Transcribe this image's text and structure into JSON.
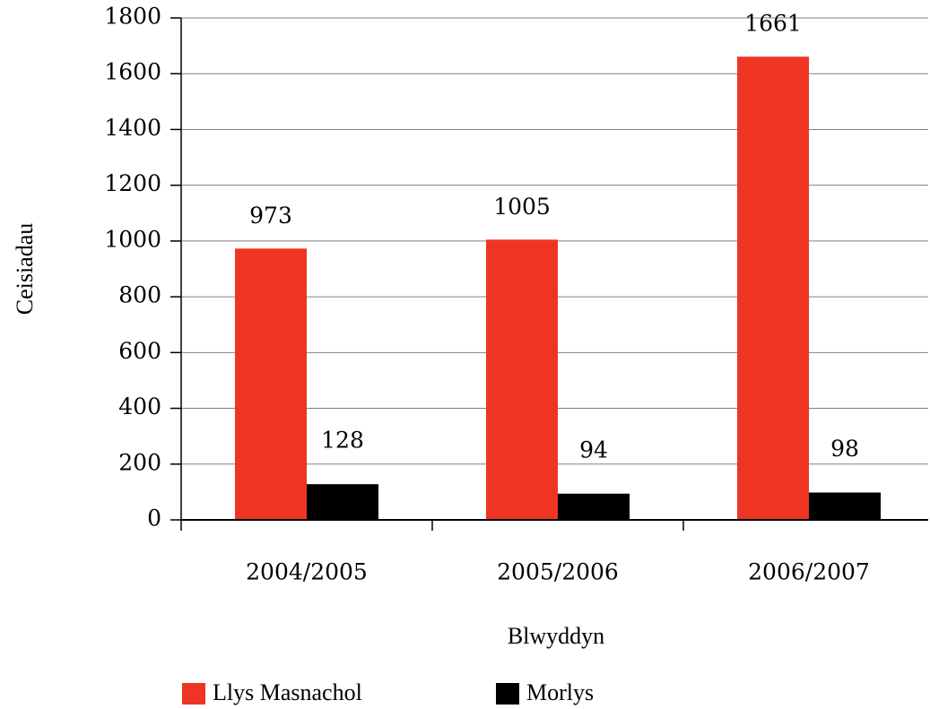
{
  "chart_data": {
    "type": "bar",
    "categories": [
      "2004/2005",
      "2005/2006",
      "2006/2007"
    ],
    "series": [
      {
        "name": "Llys Masnachol",
        "color": "#ee3524",
        "values": [
          973,
          1005,
          1661
        ]
      },
      {
        "name": "Morlys",
        "color": "#000000",
        "values": [
          128,
          94,
          98
        ]
      }
    ],
    "ylim": [
      0,
      1800
    ],
    "yticks": [
      0,
      200,
      400,
      600,
      800,
      1000,
      1200,
      1400,
      1600,
      1800
    ],
    "xlabel": "Blwyddyn",
    "ylabel": "Ceisiadau",
    "grid": true,
    "legend": "bottom"
  }
}
